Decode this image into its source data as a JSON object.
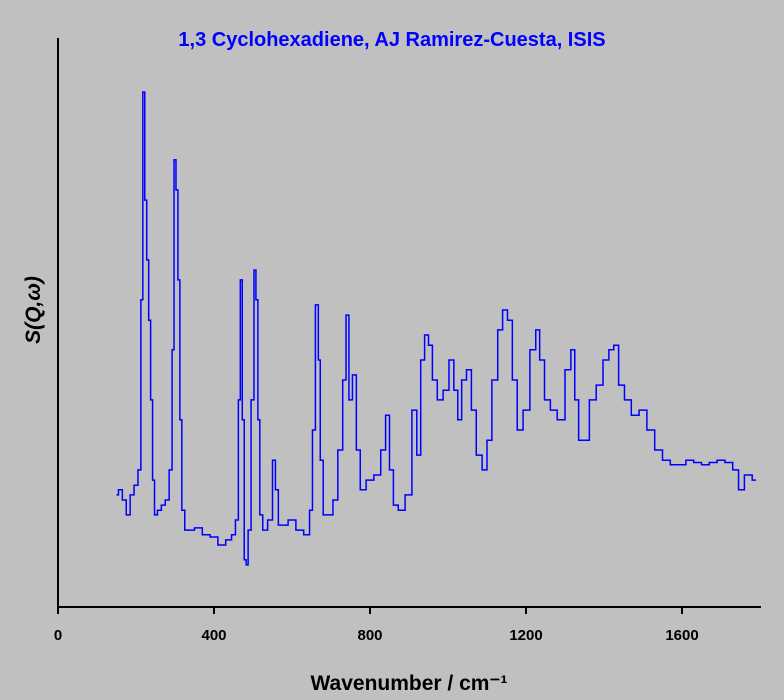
{
  "chart_data": {
    "type": "line",
    "title": "1,3 Cyclohexadiene, AJ Ramirez-Cuesta, ISIS",
    "x_label": "Wavenumber / cm⁻¹",
    "y_label": "S(Q,ω)",
    "color": "#0000ff",
    "drawstyle": "steps",
    "xlim": [
      0,
      1800
    ],
    "xticks": [
      0,
      400,
      800,
      1200,
      1600
    ],
    "ylim": [
      0,
      100
    ],
    "x": [
      150,
      160,
      170,
      180,
      190,
      200,
      210,
      215,
      220,
      225,
      230,
      235,
      240,
      245,
      250,
      260,
      270,
      280,
      290,
      295,
      300,
      305,
      310,
      315,
      320,
      330,
      340,
      360,
      380,
      400,
      420,
      440,
      450,
      460,
      465,
      470,
      475,
      480,
      485,
      490,
      500,
      505,
      510,
      515,
      520,
      530,
      545,
      555,
      560,
      570,
      580,
      600,
      620,
      640,
      650,
      655,
      665,
      670,
      675,
      685,
      700,
      710,
      725,
      735,
      742,
      750,
      760,
      770,
      780,
      800,
      820,
      835,
      845,
      855,
      865,
      880,
      900,
      915,
      925,
      935,
      945,
      955,
      965,
      980,
      995,
      1010,
      1020,
      1030,
      1040,
      1055,
      1065,
      1080,
      1095,
      1105,
      1120,
      1135,
      1145,
      1160,
      1170,
      1185,
      1200,
      1220,
      1230,
      1240,
      1255,
      1270,
      1290,
      1310,
      1320,
      1330,
      1340,
      1355,
      1370,
      1390,
      1405,
      1420,
      1430,
      1445,
      1460,
      1480,
      1500,
      1520,
      1540,
      1560,
      1580,
      1600,
      1620,
      1640,
      1660,
      1680,
      1700,
      1720,
      1740,
      1750,
      1770,
      1790
    ],
    "values": [
      19.7,
      20.6,
      18.8,
      16.2,
      19.7,
      21.4,
      24.1,
      54,
      90.5,
      71.5,
      61,
      50.4,
      36.4,
      22.3,
      16.2,
      17,
      17.9,
      18.8,
      24.1,
      45.2,
      78.6,
      73.3,
      57.5,
      32.9,
      17,
      13.5,
      13.5,
      13.9,
      12.7,
      12.3,
      10.9,
      11.8,
      12.7,
      15.3,
      36.4,
      57.5,
      32.9,
      8.3,
      7.4,
      13.5,
      36.4,
      59.2,
      54,
      32.9,
      16.2,
      13.5,
      15.3,
      25.8,
      20.6,
      14.4,
      14.4,
      15.3,
      13.5,
      12.7,
      17,
      31.1,
      53.1,
      43.4,
      25.8,
      16.2,
      16.2,
      18.8,
      27.6,
      39.9,
      51.3,
      36.4,
      40.8,
      27.6,
      20.6,
      22.3,
      23.2,
      27.6,
      33.7,
      24.1,
      17.9,
      17,
      19.7,
      34.6,
      26.7,
      43.4,
      47.8,
      46,
      39.9,
      36.4,
      38.1,
      43.4,
      38.1,
      32.9,
      39.9,
      41.7,
      34.6,
      26.7,
      24.1,
      29.3,
      39.9,
      48.7,
      52.2,
      50.4,
      39.9,
      31.1,
      34.6,
      45.2,
      48.7,
      43.4,
      36.4,
      34.6,
      32.9,
      41.7,
      45.2,
      36.4,
      29.3,
      29.3,
      36.4,
      39,
      43.4,
      45.2,
      46,
      39,
      36.4,
      33.7,
      34.6,
      31.1,
      27.6,
      25.8,
      25,
      25,
      25.8,
      25.4,
      25,
      25.4,
      25.8,
      25.4,
      24.1,
      20.6,
      23.2,
      22.3
    ]
  }
}
